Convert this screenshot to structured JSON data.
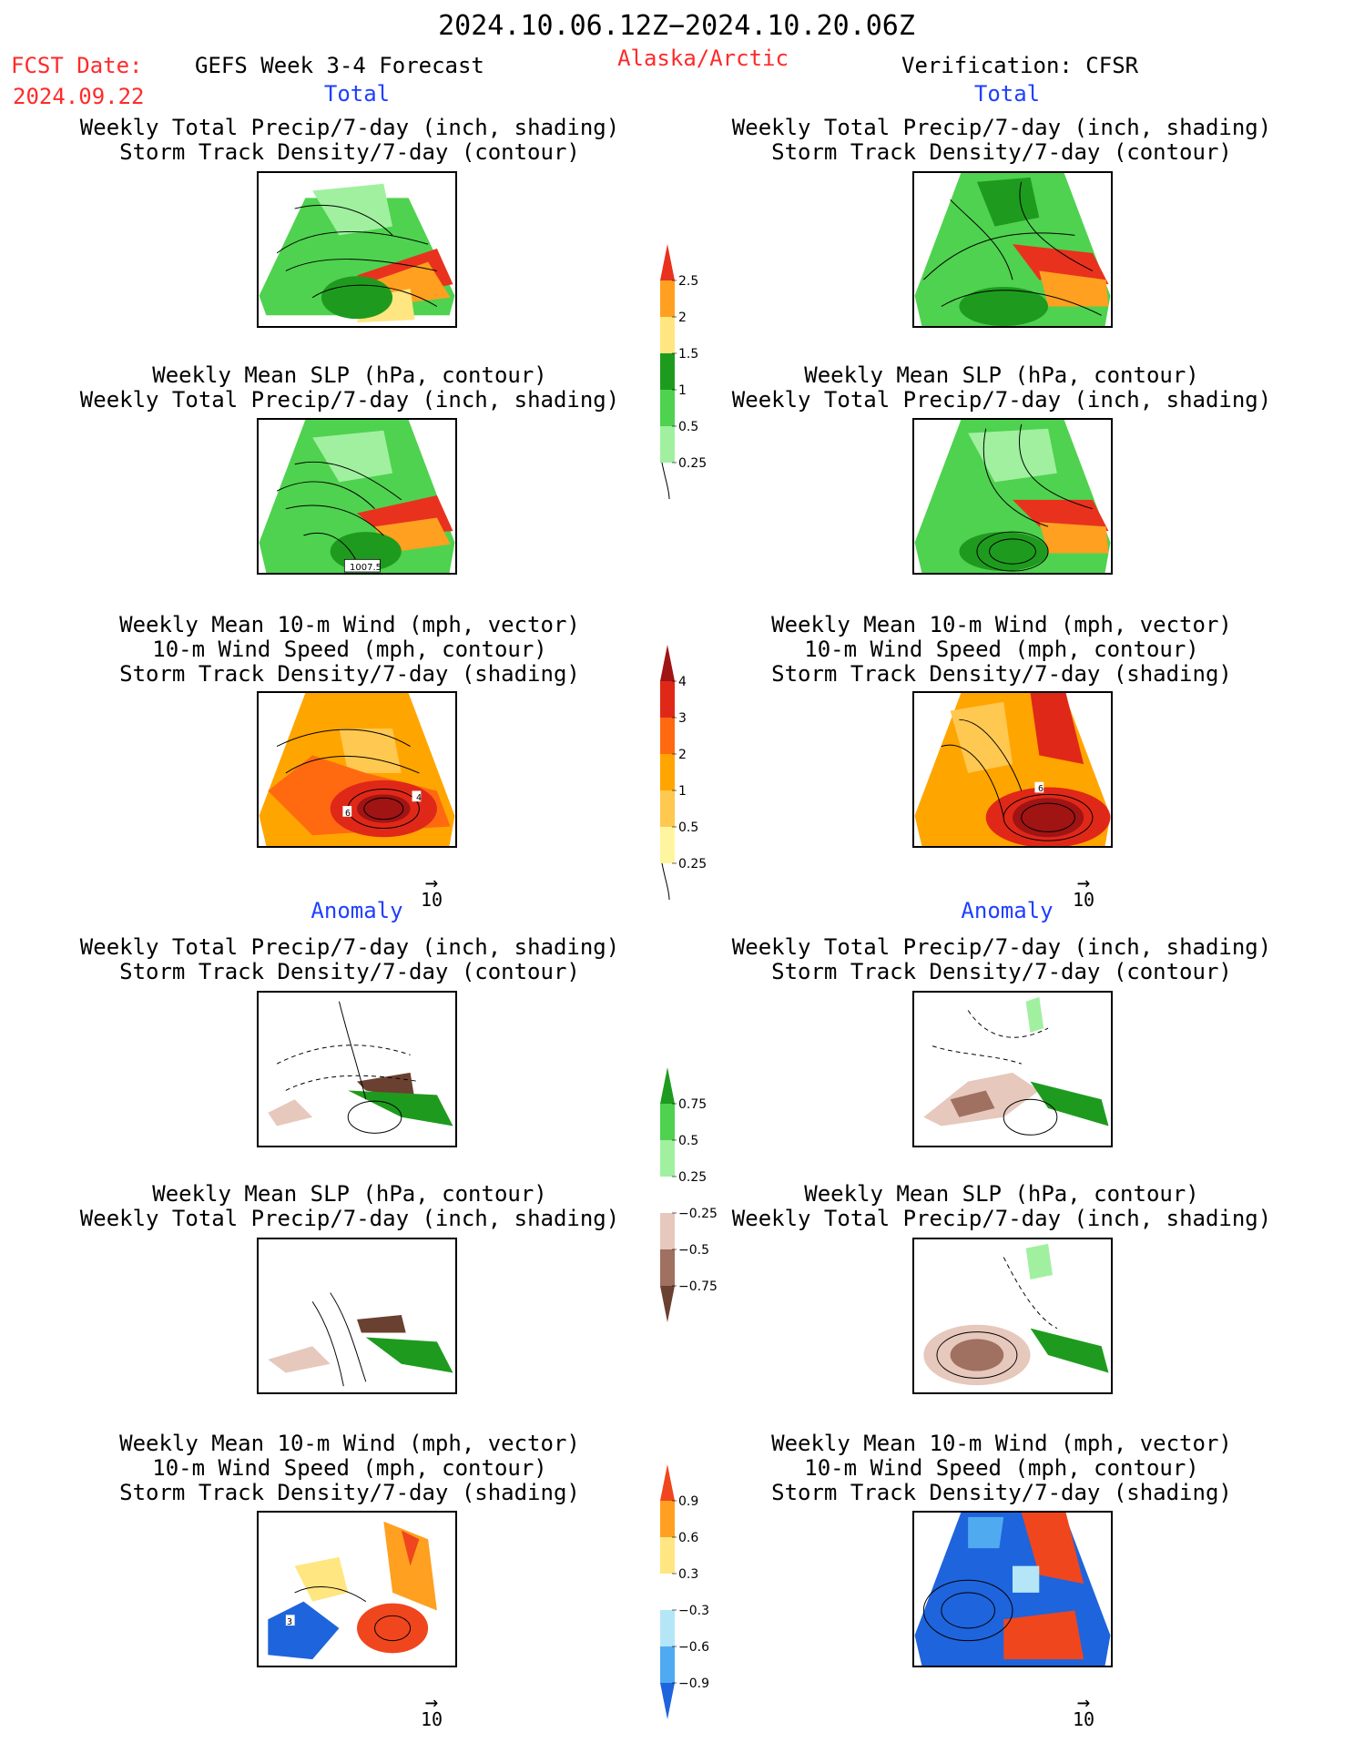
{
  "header": {
    "period": "2024.10.06.12Z−2024.10.20.06Z",
    "fcst_label": "FCST Date:",
    "fcst_date": "2024.09.22",
    "model": "GEFS Week 3-4 Forecast",
    "region": "Alaska/Arctic",
    "verification": "Verification: CFSR"
  },
  "sections": {
    "total_left": "Total",
    "total_right": "Total",
    "anomaly_left": "Anomaly",
    "anomaly_right": "Anomaly"
  },
  "titles": {
    "precip_storm": [
      "Weekly Total Precip/7-day (inch, shading)",
      "Storm Track Density/7-day (contour)"
    ],
    "slp_precip": [
      "Weekly Mean SLP (hPa, contour)",
      "Weekly Total Precip/7-day (inch, shading)"
    ],
    "wind_storm": [
      "Weekly Mean 10-m Wind (mph, vector)",
      "10-m Wind Speed (mph, contour)",
      "Storm Track Density/7-day (shading)"
    ]
  },
  "map_labels": {
    "slp_total_left": "1007.5",
    "wind_total_left_a": "6",
    "wind_total_left_b": "4",
    "wind_total_right": "6",
    "wind_anom_left": "3"
  },
  "vector_ref": "10",
  "colorbars": {
    "precip_total": {
      "labels": [
        "2.5",
        "2",
        "1.5",
        "1",
        "0.5",
        "0.25"
      ],
      "colors": [
        "#e8321e",
        "#ffa020",
        "#ffe680",
        "#1e9b1e",
        "#4fd24f",
        "#a0f0a0"
      ]
    },
    "storm_total": {
      "labels": [
        "4",
        "3",
        "2",
        "1",
        "0.5",
        "0.25"
      ],
      "colors": [
        "#a01414",
        "#e02818",
        "#ff6a10",
        "#ffa500",
        "#ffc850",
        "#fff5a0"
      ]
    },
    "precip_anom": {
      "labels": [
        "0.75",
        "0.5",
        "0.25",
        "−0.25",
        "−0.5",
        "−0.75"
      ],
      "colors": [
        "#1e9b1e",
        "#4fd24f",
        "#a0f0a0",
        "#ffffff",
        "#e6c8bc",
        "#a07060",
        "#6a4030"
      ]
    },
    "storm_anom": {
      "labels": [
        "0.9",
        "0.6",
        "0.3",
        "−0.3",
        "−0.6",
        "−0.9"
      ],
      "colors": [
        "#f0461e",
        "#ffa020",
        "#ffe680",
        "#ffffff",
        "#b4e6f8",
        "#50aaf0",
        "#1e64dc"
      ]
    }
  }
}
